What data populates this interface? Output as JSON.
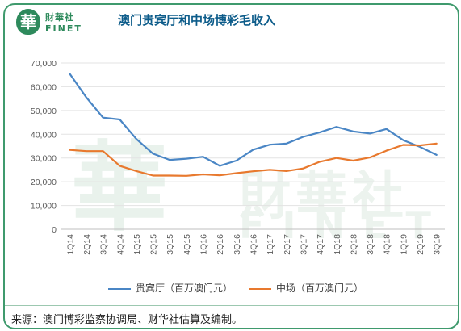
{
  "brand": {
    "logo_glyph": "華",
    "name_cn": "財華社",
    "name_en": "FINET"
  },
  "watermark": {
    "glyph": "華",
    "cn": "財華社",
    "en": "FINET"
  },
  "source": "来源：澳门博彩监察协调局、财华社估算及编制。",
  "colors": {
    "frame": "#3f9a6d",
    "vip": "#4a86c5",
    "mass": "#e8792e",
    "title": "#0d5c8a"
  },
  "chart_data": {
    "type": "line",
    "title": "澳门贵宾厅和中场博彩毛收入",
    "categories": [
      "1Q14",
      "2Q14",
      "3Q14",
      "4Q14",
      "1Q15",
      "2Q15",
      "3Q15",
      "4Q15",
      "1Q16",
      "2Q16",
      "3Q16",
      "4Q16",
      "1Q17",
      "2Q17",
      "3Q17",
      "4Q17",
      "1Q18",
      "2Q18",
      "3Q18",
      "4Q18",
      "1Q19",
      "2Q19",
      "3Q19"
    ],
    "y_ticks": [
      "0",
      "10,000",
      "20,000",
      "30,000",
      "40,000",
      "50,000",
      "60,000",
      "70,000"
    ],
    "ylim": [
      0,
      70000
    ],
    "grid": "horizontal",
    "legend_position": "bottom",
    "series": [
      {
        "name": "贵宾厅（百万澳门元）",
        "color": "#4a86c5",
        "values": [
          65500,
          55500,
          47000,
          46200,
          38000,
          31800,
          29200,
          29700,
          30500,
          26700,
          28900,
          33500,
          35600,
          36100,
          38900,
          40800,
          43100,
          41200,
          40300,
          42200,
          37500,
          34700,
          31300
        ]
      },
      {
        "name": "中场（百万澳门元）",
        "color": "#e8792e",
        "values": [
          33400,
          32900,
          32900,
          26700,
          24500,
          22600,
          22600,
          22500,
          23100,
          22700,
          23600,
          24400,
          25000,
          24500,
          25600,
          28400,
          30000,
          28900,
          30200,
          33100,
          35500,
          35300,
          36100
        ]
      }
    ]
  }
}
